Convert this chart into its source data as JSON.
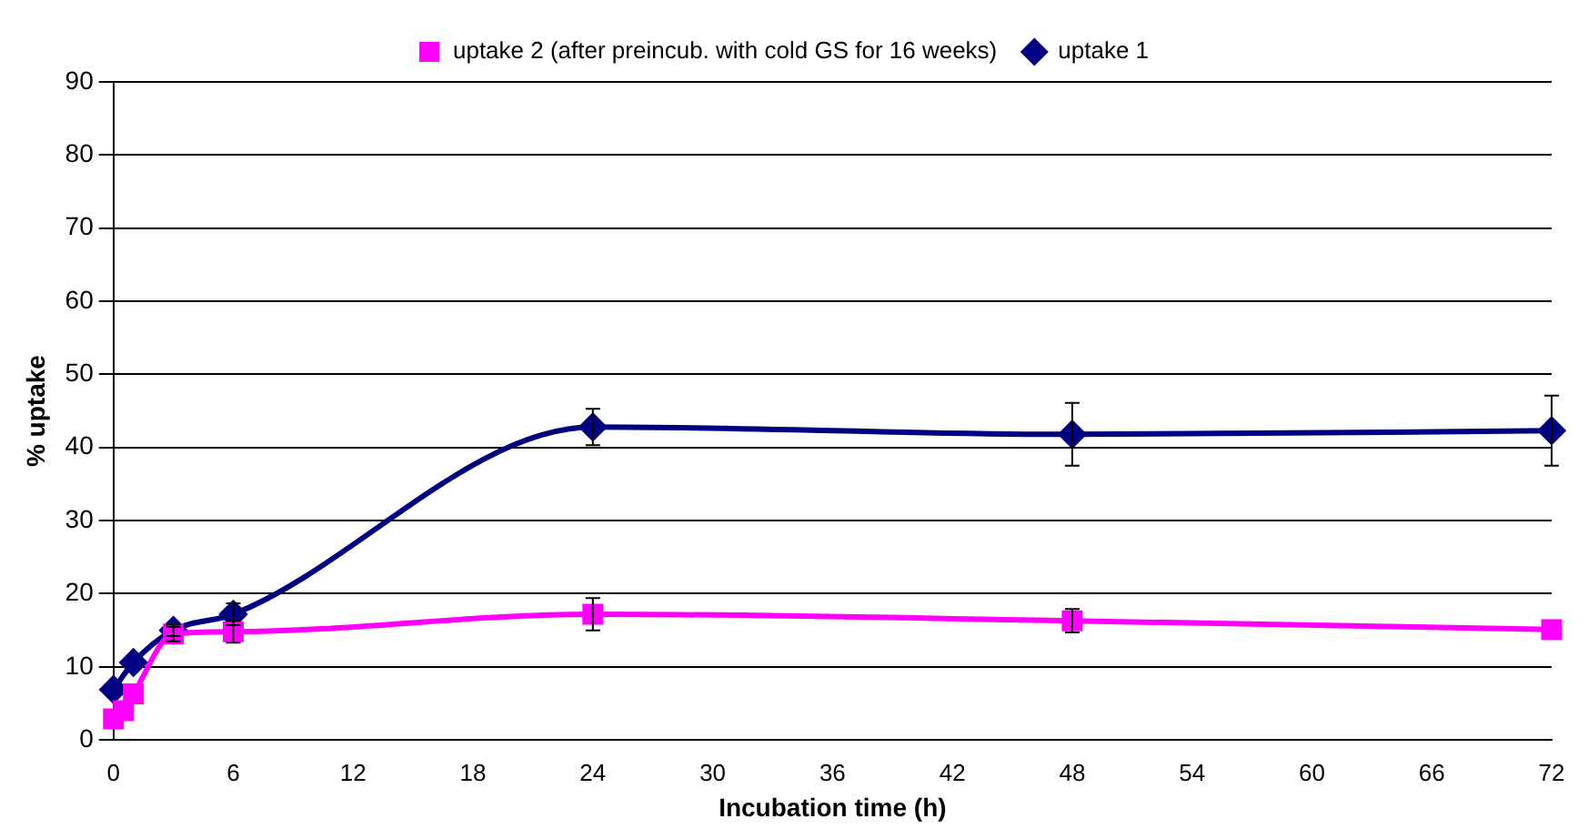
{
  "chart_data": {
    "type": "line",
    "xlabel": "Incubation time (h)",
    "ylabel": "% uptake",
    "xlim": [
      0,
      72
    ],
    "xticks": [
      0,
      6,
      12,
      18,
      24,
      30,
      36,
      42,
      48,
      54,
      60,
      66,
      72
    ],
    "ylim": [
      0,
      90
    ],
    "yticks": [
      0,
      10,
      20,
      30,
      40,
      50,
      60,
      70,
      80,
      90
    ],
    "grid": "y",
    "legend": "top",
    "line_style": "solid",
    "series": [
      {
        "name": "uptake 1",
        "color": "#000080",
        "marker": "diamond",
        "x": [
          0,
          1,
          3,
          6,
          24,
          48,
          72
        ],
        "values": [
          6.9,
          10.6,
          15.0,
          17.2,
          42.8,
          41.8,
          42.3
        ],
        "errors": [
          null,
          null,
          0.8,
          1.5,
          2.5,
          4.3,
          4.8
        ]
      },
      {
        "name": "uptake 2 (after preincub. with cold GS for 16 weeks)",
        "color": "#ff00ff",
        "marker": "square",
        "x": [
          0,
          0.5,
          1,
          3,
          6,
          24,
          48,
          72
        ],
        "values": [
          2.9,
          4.0,
          6.3,
          14.5,
          14.8,
          17.2,
          16.3,
          15.1
        ],
        "errors": [
          null,
          null,
          null,
          1.0,
          1.5,
          2.2,
          1.6,
          null
        ]
      }
    ]
  }
}
